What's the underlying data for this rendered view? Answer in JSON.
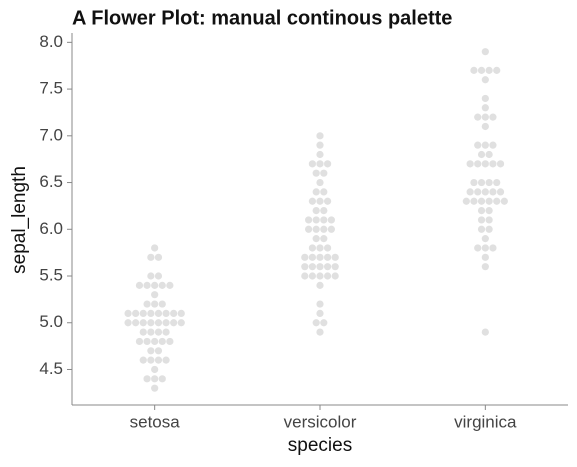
{
  "chart_data": {
    "type": "swarm",
    "title": "A Flower Plot: manual continous palette",
    "x_label": "species",
    "y_label": "sepal_length",
    "categories": [
      "setosa",
      "versicolor",
      "virginica"
    ],
    "color": "#e0e0e0",
    "values": [
      [
        5.1,
        4.9,
        4.7,
        4.6,
        5.0,
        5.4,
        4.6,
        5.0,
        4.4,
        4.9,
        5.4,
        4.8,
        4.8,
        4.3,
        5.8,
        5.7,
        5.4,
        5.1,
        5.7,
        5.1,
        5.4,
        5.1,
        4.6,
        5.1,
        4.8,
        5.0,
        5.0,
        5.2,
        5.2,
        4.7,
        4.8,
        5.4,
        5.2,
        5.5,
        4.9,
        5.0,
        5.5,
        4.9,
        4.4,
        5.1,
        5.0,
        4.5,
        4.4,
        5.0,
        5.1,
        4.8,
        5.1,
        4.6,
        5.3,
        5.0
      ],
      [
        7.0,
        6.4,
        6.9,
        5.5,
        6.5,
        5.7,
        6.3,
        4.9,
        6.6,
        5.2,
        5.0,
        5.9,
        6.0,
        6.1,
        5.6,
        6.7,
        5.6,
        5.8,
        6.2,
        5.6,
        5.9,
        6.1,
        6.3,
        6.1,
        6.4,
        6.6,
        6.8,
        6.7,
        6.0,
        5.7,
        5.5,
        5.5,
        5.8,
        6.0,
        5.4,
        6.0,
        6.7,
        6.3,
        5.6,
        5.5,
        5.5,
        6.1,
        5.8,
        5.0,
        5.6,
        5.7,
        5.7,
        6.2,
        5.1,
        5.7
      ],
      [
        6.3,
        5.8,
        7.1,
        6.3,
        6.5,
        7.6,
        4.9,
        7.3,
        6.7,
        7.2,
        6.5,
        6.4,
        6.8,
        5.7,
        5.8,
        6.4,
        6.5,
        7.7,
        7.7,
        6.0,
        6.9,
        5.6,
        7.7,
        6.3,
        6.7,
        7.2,
        6.2,
        6.1,
        6.4,
        7.2,
        7.4,
        7.9,
        6.4,
        6.3,
        6.1,
        7.7,
        6.3,
        6.4,
        6.0,
        6.9,
        6.7,
        6.9,
        5.8,
        6.8,
        6.7,
        6.7,
        6.3,
        6.5,
        6.2,
        5.9
      ]
    ],
    "ylim": [
      4.12,
      8.1
    ],
    "yticks": [
      4.5,
      {
        "value": 5,
        "label": "5.0"
      },
      5.5,
      {
        "value": 6,
        "label": "6.0"
      },
      6.5,
      {
        "value": 7,
        "label": "7.0"
      },
      7.5,
      {
        "value": 8,
        "label": "8.0"
      }
    ]
  }
}
